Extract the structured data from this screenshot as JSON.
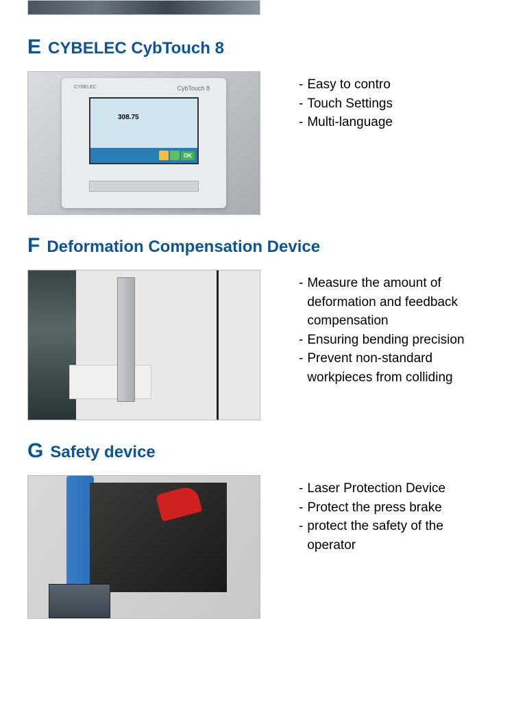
{
  "colors": {
    "heading": "#0a5599",
    "text": "#000000",
    "background": "#ffffff"
  },
  "typography": {
    "letter_fontsize": 30,
    "title_fontsize": 24,
    "bullet_fontsize": 19
  },
  "sections": [
    {
      "letter": "E",
      "title": "CYBELEC CybTouch 8",
      "image_kind": "e",
      "image_details": {
        "brand": "CYBELEC",
        "model_label": "CybTouch 8",
        "screen_value": "308.75",
        "ok_label": "OK"
      },
      "bullets": [
        "Easy to contro",
        "Touch Settings",
        "Multi-language"
      ]
    },
    {
      "letter": "F",
      "title": "Deformation Compensation Device",
      "image_kind": "f",
      "bullets": [
        "Measure the amount of deformation and feedback compensation",
        "Ensuring bending precision",
        "Prevent non-standard workpieces from colliding"
      ]
    },
    {
      "letter": "G",
      "title": "Safety device",
      "image_kind": "g",
      "bullets": [
        "Laser Protection Device",
        "Protect the press brake",
        "protect the safety of the operator"
      ]
    }
  ]
}
